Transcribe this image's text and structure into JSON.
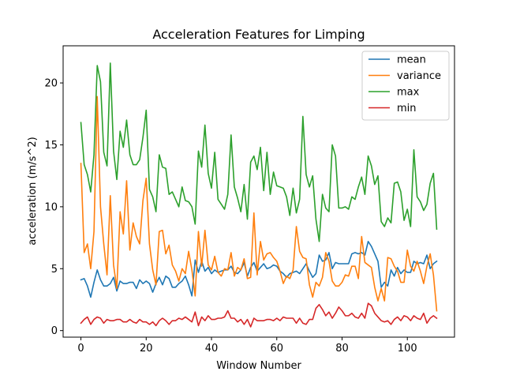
{
  "chart_data": {
    "type": "line",
    "title": "Acceleration Features for Limping",
    "xlabel": "Window Number",
    "ylabel": "acceleration (m/s^2)",
    "xlim": [
      -5.45,
      114.45
    ],
    "ylim": [
      -0.53,
      23.0
    ],
    "xticks": [
      0,
      20,
      40,
      60,
      80,
      100
    ],
    "yticks": [
      0,
      5,
      10,
      15,
      20
    ],
    "legend_position": "upper-right",
    "grid": false,
    "series": [
      {
        "name": "mean",
        "color": "#1f77b4",
        "values": [
          4.1,
          4.2,
          3.6,
          2.7,
          3.9,
          4.9,
          4.1,
          3.6,
          3.6,
          3.8,
          4.3,
          3.2,
          4.0,
          3.8,
          3.8,
          3.9,
          3.9,
          3.4,
          4.1,
          3.8,
          4.0,
          3.8,
          3.1,
          3.8,
          4.3,
          3.7,
          4.4,
          4.2,
          3.5,
          3.5,
          3.8,
          4.0,
          4.4,
          3.7,
          2.8,
          5.7,
          4.7,
          5.6,
          4.8,
          5.1,
          4.6,
          4.9,
          4.7,
          4.8,
          4.9,
          4.9,
          5.2,
          4.7,
          4.6,
          4.9,
          5.5,
          4.4,
          5.1,
          5.5,
          4.8,
          5.1,
          5.4,
          5.0,
          5.1,
          5.3,
          5.2,
          4.8,
          4.6,
          4.3,
          4.6,
          4.7,
          4.8,
          4.6,
          5.0,
          5.4,
          4.8,
          4.3,
          4.6,
          6.1,
          5.6,
          5.7,
          6.3,
          5.0,
          5.5,
          5.4,
          5.4,
          5.4,
          5.4,
          6.2,
          6.3,
          6.2,
          6.3,
          6.1,
          7.2,
          6.8,
          6.2,
          5.6,
          3.5,
          3.9,
          3.6,
          4.9,
          4.4,
          5.1,
          4.6,
          4.9,
          4.7,
          4.7,
          5.6,
          5.4,
          5.5,
          5.4,
          6.1,
          5.0,
          5.4,
          5.6
        ]
      },
      {
        "name": "variance",
        "color": "#ff7f0e",
        "values": [
          13.5,
          6.3,
          7.0,
          5.0,
          8.0,
          18.9,
          10.0,
          7.0,
          4.5,
          10.9,
          5.3,
          3.4,
          9.6,
          7.8,
          12.1,
          6.5,
          8.7,
          7.6,
          7.0,
          10.5,
          12.3,
          7.0,
          4.9,
          3.7,
          8.0,
          8.1,
          6.2,
          6.9,
          5.3,
          4.8,
          4.0,
          5.0,
          4.6,
          6.4,
          4.9,
          2.8,
          8.0,
          5.2,
          8.1,
          5.3,
          4.9,
          6.0,
          4.7,
          4.4,
          5.0,
          4.9,
          6.3,
          4.4,
          5.1,
          4.9,
          5.8,
          4.2,
          4.3,
          9.5,
          4.5,
          7.2,
          5.7,
          6.2,
          6.3,
          5.9,
          5.6,
          4.8,
          3.8,
          4.4,
          4.2,
          4.9,
          8.4,
          6.4,
          5.9,
          5.8,
          3.7,
          2.7,
          3.9,
          3.6,
          4.3,
          6.3,
          5.6,
          4.0,
          3.6,
          3.6,
          3.9,
          4.5,
          4.4,
          5.2,
          5.2,
          4.2,
          7.6,
          5.5,
          5.3,
          5.1,
          3.5,
          2.4,
          3.4,
          2.4,
          5.9,
          5.8,
          5.2,
          4.8,
          3.9,
          3.9,
          6.5,
          5.2,
          4.8,
          5.6,
          4.8,
          3.8,
          5.2,
          6.2,
          4.5,
          1.6
        ]
      },
      {
        "name": "max",
        "color": "#2ca02c",
        "values": [
          16.8,
          13.4,
          12.6,
          11.2,
          14.2,
          21.4,
          20.1,
          14.4,
          13.3,
          21.6,
          14.5,
          12.2,
          16.1,
          14.8,
          17.0,
          14.2,
          13.4,
          13.4,
          13.8,
          15.6,
          17.8,
          11.4,
          10.8,
          9.6,
          14.2,
          13.2,
          13.1,
          11.0,
          11.2,
          10.6,
          10.0,
          11.6,
          10.5,
          10.4,
          10.0,
          8.6,
          14.5,
          13.2,
          16.6,
          12.7,
          11.5,
          14.4,
          10.6,
          10.2,
          9.8,
          11.0,
          15.8,
          11.6,
          10.7,
          9.6,
          11.8,
          9.0,
          13.6,
          14.1,
          13.0,
          14.8,
          11.3,
          14.4,
          11.0,
          12.8,
          11.7,
          11.6,
          11.5,
          10.8,
          9.3,
          11.5,
          9.5,
          10.6,
          17.3,
          12.6,
          11.6,
          12.5,
          9.0,
          7.2,
          11.0,
          9.9,
          9.6,
          15.0,
          14.1,
          9.9,
          9.9,
          10.0,
          9.8,
          10.8,
          10.6,
          11.6,
          12.4,
          11.0,
          14.1,
          13.3,
          11.8,
          12.5,
          8.8,
          8.4,
          9.1,
          8.7,
          11.9,
          12.0,
          11.2,
          8.9,
          9.8,
          8.4,
          14.6,
          10.8,
          10.4,
          9.7,
          10.2,
          11.9,
          12.7,
          8.2
        ]
      },
      {
        "name": "min",
        "color": "#d62728",
        "values": [
          0.6,
          0.9,
          1.1,
          0.5,
          0.9,
          1.1,
          1.0,
          0.6,
          0.9,
          0.8,
          0.8,
          0.9,
          0.9,
          0.7,
          0.7,
          0.9,
          0.7,
          0.6,
          0.9,
          0.7,
          0.7,
          0.5,
          0.7,
          0.4,
          0.8,
          1.0,
          0.8,
          0.5,
          0.8,
          0.8,
          1.0,
          0.9,
          1.1,
          0.9,
          0.7,
          1.5,
          0.4,
          1.1,
          0.8,
          1.2,
          0.9,
          0.9,
          1.0,
          1.0,
          1.1,
          1.6,
          1.0,
          1.0,
          0.7,
          0.9,
          0.5,
          0.9,
          0.3,
          1.0,
          0.8,
          0.8,
          0.8,
          0.9,
          0.9,
          0.8,
          1.0,
          0.8,
          1.1,
          1.0,
          1.0,
          1.0,
          0.6,
          1.0,
          0.6,
          0.5,
          0.9,
          0.9,
          1.8,
          2.1,
          1.7,
          1.2,
          1.5,
          1.0,
          1.4,
          1.9,
          1.6,
          1.2,
          1.2,
          1.4,
          1.1,
          1.0,
          1.4,
          1.0,
          2.2,
          2.0,
          1.4,
          1.1,
          0.8,
          0.7,
          0.8,
          0.5,
          0.9,
          1.1,
          0.8,
          1.2,
          1.1,
          0.8,
          1.2,
          1.0,
          0.9,
          1.4,
          0.6,
          1.0,
          1.2,
          1.0
        ]
      }
    ]
  }
}
